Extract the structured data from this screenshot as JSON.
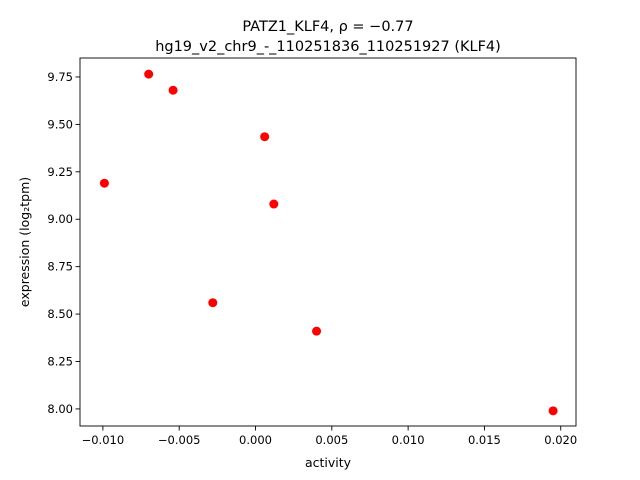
{
  "chart_data": {
    "type": "scatter",
    "title_line1": "PATZ1_KLF4, ρ = −0.77",
    "title_line2": "hg19_v2_chr9_-_110251836_110251927 (KLF4)",
    "xlabel": "activity",
    "ylabel": "expression (log₂tpm)",
    "xlim": [
      -0.0115,
      0.021
    ],
    "ylim": [
      7.91,
      9.85
    ],
    "xticks": [
      -0.01,
      -0.005,
      0.0,
      0.005,
      0.01,
      0.015,
      0.02
    ],
    "xtick_labels": [
      "−0.010",
      "−0.005",
      "0.000",
      "0.005",
      "0.010",
      "0.015",
      "0.020"
    ],
    "yticks": [
      8.0,
      8.25,
      8.5,
      8.75,
      9.0,
      9.25,
      9.5,
      9.75
    ],
    "ytick_labels": [
      "8.00",
      "8.25",
      "8.50",
      "8.75",
      "9.00",
      "9.25",
      "9.50",
      "9.75"
    ],
    "point_color": "#ff0000",
    "grid": false,
    "points": [
      {
        "x": -0.0099,
        "y": 9.19
      },
      {
        "x": -0.007,
        "y": 9.765
      },
      {
        "x": -0.0054,
        "y": 9.68
      },
      {
        "x": -0.0028,
        "y": 8.56
      },
      {
        "x": 0.0006,
        "y": 9.435
      },
      {
        "x": 0.0012,
        "y": 9.08
      },
      {
        "x": 0.004,
        "y": 8.41
      },
      {
        "x": 0.0195,
        "y": 7.99
      }
    ]
  }
}
